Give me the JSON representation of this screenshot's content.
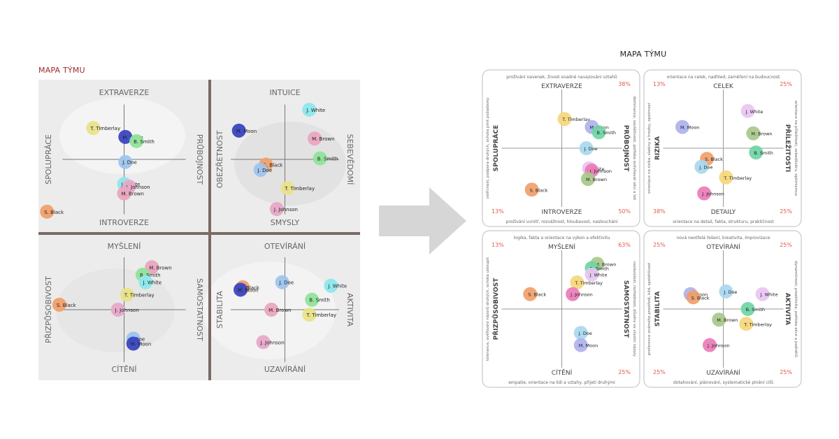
{
  "left_panel": {
    "title": "MAPA TÝMU",
    "quadrants": [
      {
        "top": "EXTRAVERZE",
        "bottom": "INTROVERZE",
        "left": "SPOLUPRÁCE",
        "right": "PRŮBOJNOST",
        "points": [
          {
            "name": "T. Timberlay",
            "x": -0.5,
            "y": 0.6,
            "color": "#e9e28a"
          },
          {
            "name": "M. Moon",
            "x": 0.02,
            "y": 0.43,
            "color": "#3a46c0"
          },
          {
            "name": "B. Smith",
            "x": 0.2,
            "y": 0.35,
            "color": "#8fe39a"
          },
          {
            "name": "J. Doe",
            "x": 0.02,
            "y": -0.05,
            "color": "#9fc4ec"
          },
          {
            "name": "J. White",
            "x": 0.0,
            "y": -0.47,
            "color": "#8ee8ec"
          },
          {
            "name": "J. Johnson",
            "x": 0.08,
            "y": -0.52,
            "color": "#e8a8c8"
          },
          {
            "name": "M. Brown",
            "x": 0.0,
            "y": -0.65,
            "color": "#e9a6c0"
          },
          {
            "name": "S. Black",
            "x": -1.25,
            "y": -1.0,
            "color": "#f0a06a"
          }
        ]
      },
      {
        "top": "INTUICE",
        "bottom": "SMYSLY",
        "left": "OBEZŘETNOST",
        "right": "SEBEVĚDOMÍ",
        "points": [
          {
            "name": "J. White",
            "x": 0.45,
            "y": 0.95,
            "color": "#8ee8ec"
          },
          {
            "name": "M. Moon",
            "x": -0.85,
            "y": 0.55,
            "color": "#3a46c0"
          },
          {
            "name": "M. Brown",
            "x": 0.55,
            "y": 0.4,
            "color": "#e9a6c0"
          },
          {
            "name": "B. Smith",
            "x": 0.65,
            "y": 0.02,
            "color": "#8fe39a"
          },
          {
            "name": "S. Black",
            "x": -0.35,
            "y": -0.1,
            "color": "#f0a06a"
          },
          {
            "name": "J. Doe",
            "x": -0.45,
            "y": -0.2,
            "color": "#9fc4ec"
          },
          {
            "name": "T. Timberlay",
            "x": 0.05,
            "y": -0.55,
            "color": "#e9e28a"
          },
          {
            "name": "J. Johnson",
            "x": -0.15,
            "y": -0.95,
            "color": "#e8a8c8"
          }
        ]
      },
      {
        "top": "MYŠLENÍ",
        "bottom": "CÍTĚNÍ",
        "left": "PŘIZPŮSOBIVOST",
        "right": "SAMOSTATNOST",
        "points": [
          {
            "name": "M. Brown",
            "x": 0.45,
            "y": 0.85,
            "color": "#e9a6c0"
          },
          {
            "name": "B. Smith",
            "x": 0.3,
            "y": 0.7,
            "color": "#8fe39a"
          },
          {
            "name": "J. White",
            "x": 0.35,
            "y": 0.55,
            "color": "#8ee8ec"
          },
          {
            "name": "T. Timberlay",
            "x": 0.05,
            "y": 0.3,
            "color": "#e9e28a"
          },
          {
            "name": "S. Black",
            "x": -1.05,
            "y": 0.1,
            "color": "#f0a06a"
          },
          {
            "name": "J. Johnson",
            "x": -0.1,
            "y": 0.0,
            "color": "#e8a8c8"
          },
          {
            "name": "J. Doe",
            "x": 0.15,
            "y": -0.58,
            "color": "#9fc4ec"
          },
          {
            "name": "M. Moon",
            "x": 0.15,
            "y": -0.68,
            "color": "#3a46c0"
          }
        ]
      },
      {
        "top": "OTEVÍRÁNÍ",
        "bottom": "UZAVÍRÁNÍ",
        "left": "STABILITA",
        "right": "AKTIVITA",
        "points": [
          {
            "name": "J. Doe",
            "x": -0.05,
            "y": 0.55,
            "color": "#9fc4ec"
          },
          {
            "name": "J. White",
            "x": 0.85,
            "y": 0.48,
            "color": "#8ee8ec"
          },
          {
            "name": "S. Black",
            "x": -0.78,
            "y": 0.45,
            "color": "#f0a06a"
          },
          {
            "name": "M. Moon",
            "x": -0.82,
            "y": 0.4,
            "color": "#3a46c0"
          },
          {
            "name": "B. Smith",
            "x": 0.5,
            "y": 0.2,
            "color": "#8fe39a"
          },
          {
            "name": "M. Brown",
            "x": -0.25,
            "y": 0.0,
            "color": "#e9a6c0"
          },
          {
            "name": "T. Timberlay",
            "x": 0.45,
            "y": -0.1,
            "color": "#e9e28a"
          },
          {
            "name": "J. Johnson",
            "x": -0.4,
            "y": -0.65,
            "color": "#e8a8c8"
          }
        ]
      }
    ]
  },
  "right_panel": {
    "title": "MAPA TÝMU",
    "quadrants": [
      {
        "top": "EXTRAVERZE",
        "bottom": "INTROVERZE",
        "left": "SPOLUPRÁCE",
        "right": "PRŮBOJNOST",
        "desc_top": "prožívání navenek, živost snadné navazování vztahů",
        "desc_bottom": "prožívání uvnitř, rozvážnost, hloubavost, naslouchání",
        "desc_left": "vstřícnost, podpora druhých, ochota plnit požadavky",
        "desc_right": "dominance, soutěživost, potřeba ovlivňovat věci a lidi",
        "pct_tr": "38%",
        "pct_br": "50%",
        "pct_bl": "13%",
        "pct_tl": "",
        "points": [
          {
            "name": "T. Timberlay",
            "x": 0.05,
            "y": 0.55,
            "color": "#f5d77a"
          },
          {
            "name": "M. Moon",
            "x": 0.55,
            "y": 0.4,
            "color": "#aeb2ea"
          },
          {
            "name": "B. Smith",
            "x": 0.68,
            "y": 0.3,
            "color": "#6fd5a5"
          },
          {
            "name": "J. Doe",
            "x": 0.45,
            "y": 0.0,
            "color": "#a8d8ef"
          },
          {
            "name": "J. White",
            "x": 0.5,
            "y": -0.38,
            "color": "#e8c6f2"
          },
          {
            "name": "J. Johnson",
            "x": 0.55,
            "y": -0.42,
            "color": "#ec7bb8"
          },
          {
            "name": "M. Brown",
            "x": 0.48,
            "y": -0.58,
            "color": "#a8c98a"
          },
          {
            "name": "S. Black",
            "x": -0.55,
            "y": -0.78,
            "color": "#f0a06a"
          }
        ]
      },
      {
        "top": "CELEK",
        "bottom": "DETAILY",
        "left": "RIZIKA",
        "right": "PŘÍLEŽITOSTI",
        "desc_top": "orientace na celek, nadhled, zaměření na budoucnost",
        "desc_bottom": "orientace na detail, fakta, strukturu, praktičnost",
        "desc_left": "orientace na rizika, slabiny a hrozby, opatrnost",
        "desc_right": "orientace na příležitosti, sebedůvěru, optimismus",
        "pct_tl": "13%",
        "pct_tr": "25%",
        "pct_bl": "38%",
        "pct_br": "25%",
        "points": [
          {
            "name": "J. White",
            "x": 0.45,
            "y": 0.7,
            "color": "#e8c6f2"
          },
          {
            "name": "M. Moon",
            "x": -0.75,
            "y": 0.4,
            "color": "#aeb2ea"
          },
          {
            "name": "M. Brown",
            "x": 0.55,
            "y": 0.28,
            "color": "#a8c98a"
          },
          {
            "name": "B. Smith",
            "x": 0.6,
            "y": -0.08,
            "color": "#6fd5a5"
          },
          {
            "name": "S. Black",
            "x": -0.3,
            "y": -0.2,
            "color": "#f0a06a"
          },
          {
            "name": "J. Doe",
            "x": -0.4,
            "y": -0.35,
            "color": "#a8d8ef"
          },
          {
            "name": "T. Timberlay",
            "x": 0.05,
            "y": -0.55,
            "color": "#f5d77a"
          },
          {
            "name": "J. Johnson",
            "x": -0.35,
            "y": -0.85,
            "color": "#ec7bb8"
          }
        ]
      },
      {
        "top": "MYŠLENÍ",
        "bottom": "CÍTĚNÍ",
        "left": "PŘIZPŮSOBIVOST",
        "right": "SAMOSTATNOST",
        "desc_top": "logika, fakta a orientace na výkon a efektivitu",
        "desc_bottom": "empatie, orientace na lidi a vztahy, přijetí druhými",
        "desc_left": "tolerance, ověřování názorů druhých, ochota ustoupit",
        "desc_right": "nezávislost, rozhodnost, důvěra ve vlastní názory",
        "pct_tl": "13%",
        "pct_tr": "63%",
        "pct_bl": "",
        "pct_br": "25%",
        "points": [
          {
            "name": "M. Brown",
            "x": 0.65,
            "y": 0.85,
            "color": "#a8c98a"
          },
          {
            "name": "B. Smith",
            "x": 0.55,
            "y": 0.77,
            "color": "#6fd5a5"
          },
          {
            "name": "J. White",
            "x": 0.55,
            "y": 0.65,
            "color": "#e8c6f2"
          },
          {
            "name": "T. Timberlay",
            "x": 0.28,
            "y": 0.5,
            "color": "#f5d77a"
          },
          {
            "name": "S. Black",
            "x": -0.58,
            "y": 0.28,
            "color": "#f0a06a"
          },
          {
            "name": "J. Johnson",
            "x": 0.2,
            "y": 0.28,
            "color": "#ec7bb8"
          },
          {
            "name": "J. Doe",
            "x": 0.35,
            "y": -0.45,
            "color": "#a8d8ef"
          },
          {
            "name": "M. Moon",
            "x": 0.35,
            "y": -0.68,
            "color": "#aeb2ea"
          }
        ]
      },
      {
        "top": "OTEVÍRÁNÍ",
        "bottom": "UZAVÍRÁNÍ",
        "left": "STABILITA",
        "right": "AKTIVITA",
        "desc_top": "nová neotřelá řešení, kreativita, improvizace",
        "desc_bottom": "dotahování, plánování, systematické plnění cílů",
        "desc_left": "preference známého prostředí, klid, spolehlivost",
        "desc_right": "dynamičnost, proaktivita, potřeba akce a podnětů",
        "pct_tl": "25%",
        "pct_tr": "25%",
        "pct_bl": "25%",
        "pct_br": "25%",
        "points": [
          {
            "name": "J. Doe",
            "x": 0.05,
            "y": 0.33,
            "color": "#a8d8ef"
          },
          {
            "name": "J. White",
            "x": 0.72,
            "y": 0.28,
            "color": "#e8c6f2"
          },
          {
            "name": "M. Moon",
            "x": -0.6,
            "y": 0.28,
            "color": "#aeb2ea"
          },
          {
            "name": "S. Black",
            "x": -0.55,
            "y": 0.22,
            "color": "#f0a06a"
          },
          {
            "name": "B. Smith",
            "x": 0.45,
            "y": 0.0,
            "color": "#6fd5a5"
          },
          {
            "name": "M. Brown",
            "x": -0.08,
            "y": -0.2,
            "color": "#a8c98a"
          },
          {
            "name": "T. Timberlay",
            "x": 0.42,
            "y": -0.28,
            "color": "#f5d77a"
          },
          {
            "name": "J. Johnson",
            "x": -0.25,
            "y": -0.68,
            "color": "#ec7bb8"
          }
        ]
      }
    ]
  }
}
